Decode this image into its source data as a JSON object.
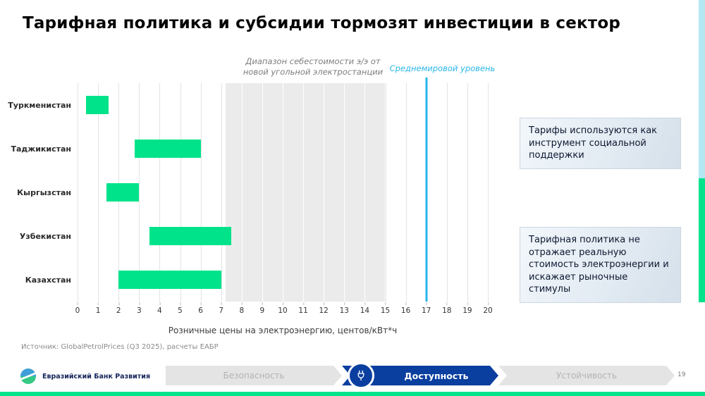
{
  "title": "Тарифная политика и субсидии тормозят инвестиции в сектор",
  "chart_data": {
    "type": "bar",
    "orientation": "horizontal-range",
    "categories": [
      "Туркменистан",
      "Таджикистан",
      "Кыргызстан",
      "Узбекистан",
      "Казахстан"
    ],
    "series": [
      {
        "name": "Розничные цены на электроэнергию",
        "ranges": [
          [
            0.4,
            1.5
          ],
          [
            2.8,
            6.0
          ],
          [
            1.4,
            3.0
          ],
          [
            3.5,
            7.5
          ],
          [
            2.0,
            7.0
          ]
        ]
      }
    ],
    "band": {
      "label": "Диапазон себестоимости э/э от новой угольной электростанции",
      "from": 7.2,
      "to": 15
    },
    "reference_line": {
      "label": "Среднемировой уровень",
      "value": 17
    },
    "xlabel": "Розничные цены на электроэнергию, центов/кВт*ч",
    "xlim": [
      0,
      20
    ],
    "xtick_step": 1,
    "grid": true,
    "bar_color": "#00e38b",
    "band_color": "#ebebeb",
    "line_color": "#27b6ea"
  },
  "annotations": [
    {
      "text": "Тарифы используются как инструмент социальной поддержки"
    },
    {
      "text": "Тарифная политика не отражает реальную стоимость электроэнергии и искажает рыночные стимулы"
    }
  ],
  "source": "Источник: GlobalPetrolPrices (Q3 2025), расчеты ЕАБР",
  "footer": {
    "logo_text": "Евразийский Банк Развития",
    "nav": [
      {
        "label": "Безопасность",
        "active": false
      },
      {
        "label": "Доступность",
        "active": true
      },
      {
        "label": "Устойчивость",
        "active": false
      }
    ],
    "page_number": "19"
  },
  "accent_colors": {
    "bar_green": "#00e38b",
    "nav_blue": "#0a3fa0",
    "edge_cyan": "#b5e7f3",
    "reference_cyan": "#27b6ea"
  }
}
